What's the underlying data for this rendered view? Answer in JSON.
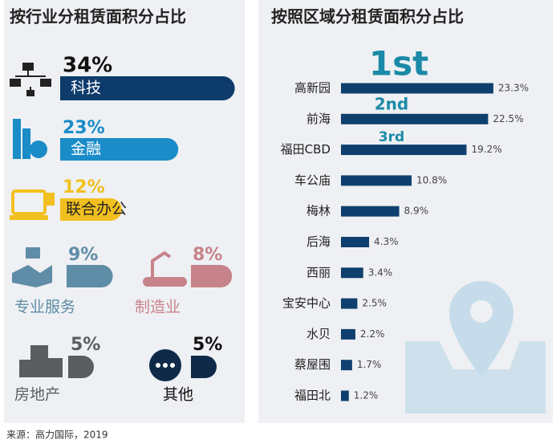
{
  "chart_data": [
    {
      "type": "pill",
      "title": "按行业分租赁面积分占比",
      "categories": [
        "科技",
        "金融",
        "联合办公",
        "专业服务",
        "制造业",
        "房地产",
        "其他"
      ],
      "values": [
        34,
        23,
        12,
        9,
        8,
        5,
        5
      ],
      "value_labels": [
        "34%",
        "23%",
        "12%",
        "9%",
        "8%",
        "5%",
        "5%"
      ],
      "colors": [
        "#0d3b6b",
        "#1a8cc8",
        "#f2c01e",
        "#5f8ca6",
        "#c7838a",
        "#5b5d60",
        "#0f2a49"
      ]
    },
    {
      "type": "bar",
      "title": "按照区域分租赁面积分占比",
      "categories": [
        "高新园",
        "前海",
        "福田CBD",
        "车公庙",
        "梅林",
        "后海",
        "西丽",
        "宝安中心",
        "水贝",
        "蔡屋围",
        "福田北"
      ],
      "values": [
        23.3,
        22.5,
        19.2,
        10.8,
        8.9,
        4.3,
        3.4,
        2.5,
        2.2,
        1.7,
        1.2
      ],
      "value_labels": [
        "23.3%",
        "22.5%",
        "19.2%",
        "10.8%",
        "8.9%",
        "4.3%",
        "3.4%",
        "2.5%",
        "2.2%",
        "1.7%",
        "1.2%"
      ],
      "color": "#0f3f6e",
      "annotations": [
        "1st",
        "2nd",
        "3rd"
      ]
    }
  ],
  "source": "来源：高力国际，2019"
}
